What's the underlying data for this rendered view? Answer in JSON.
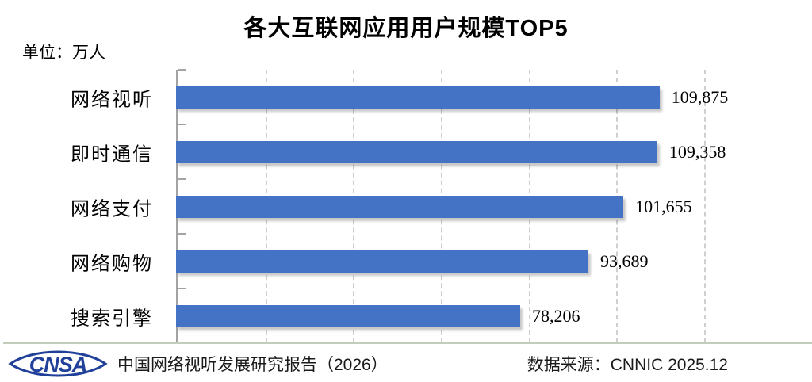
{
  "title": "各大互联网应用用户规模TOP5",
  "unit_label": "单位：万人",
  "chart_data": {
    "type": "bar",
    "orientation": "horizontal",
    "title": "各大互联网应用用户规模TOP5",
    "unit": "万人",
    "categories": [
      "网络视听",
      "即时通信",
      "网络支付",
      "网络购物",
      "搜索引擎"
    ],
    "values": [
      109875,
      109358,
      101655,
      93689,
      78206
    ],
    "value_labels": [
      "109,875",
      "109,358",
      "101,655",
      "93,689",
      "78,206"
    ],
    "xlim": [
      0,
      120000
    ],
    "gridline_interval": 20000,
    "grid": "vertical-dashed",
    "legend": "none",
    "bar_color": "#4472C4"
  },
  "footer": {
    "logo_text": "CNSA",
    "report_label": "中国网络视听发展研究报告（2026）",
    "source_label": "数据来源：CNNIC 2025.12"
  },
  "colors": {
    "bar": "#4472C4",
    "axis": "#a3a3a3",
    "gridline": "#cfcfcf",
    "divider": "#c3cdbd",
    "logo_blue": "#20409a"
  }
}
